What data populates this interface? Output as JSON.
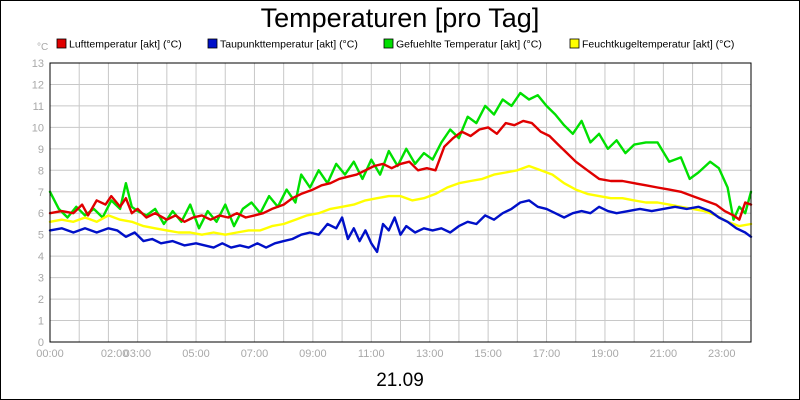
{
  "chart_data": {
    "type": "line",
    "title": "Temperaturen [pro Tag]",
    "date_label": "21.09",
    "y_unit": "°C",
    "xlabel": "",
    "ylabel": "",
    "xlim": [
      0,
      24
    ],
    "ylim": [
      0,
      13
    ],
    "y_ticks": [
      0,
      1,
      2,
      3,
      4,
      5,
      6,
      7,
      8,
      9,
      10,
      11,
      12,
      13
    ],
    "x_ticks": [
      {
        "label": "00:00",
        "x": 0
      },
      {
        "label": "02:00",
        "x": 2
      },
      {
        "label": "03:00",
        "x": 3
      },
      {
        "label": "05:00",
        "x": 5
      },
      {
        "label": "07:00",
        "x": 7
      },
      {
        "label": "09:00",
        "x": 9
      },
      {
        "label": "11:00",
        "x": 11
      },
      {
        "label": "13:00",
        "x": 13
      },
      {
        "label": "15:00",
        "x": 15
      },
      {
        "label": "17:00",
        "x": 17
      },
      {
        "label": "19:00",
        "x": 19
      },
      {
        "label": "21:00",
        "x": 21
      },
      {
        "label": "23:00",
        "x": 23
      }
    ],
    "grid": true,
    "legend_position": "top",
    "series": [
      {
        "name": "Lufttemperatur [akt] (°C)",
        "color": "#e00000",
        "points": [
          [
            0,
            6.0
          ],
          [
            0.4,
            6.1
          ],
          [
            0.8,
            6.0
          ],
          [
            1.1,
            6.4
          ],
          [
            1.3,
            5.9
          ],
          [
            1.6,
            6.6
          ],
          [
            1.9,
            6.4
          ],
          [
            2.1,
            6.8
          ],
          [
            2.4,
            6.3
          ],
          [
            2.6,
            6.7
          ],
          [
            2.8,
            6.0
          ],
          [
            3.0,
            6.2
          ],
          [
            3.3,
            5.8
          ],
          [
            3.6,
            6.0
          ],
          [
            4.0,
            5.7
          ],
          [
            4.3,
            5.9
          ],
          [
            4.6,
            5.6
          ],
          [
            4.9,
            5.8
          ],
          [
            5.2,
            5.9
          ],
          [
            5.5,
            5.7
          ],
          [
            5.8,
            5.9
          ],
          [
            6.1,
            5.8
          ],
          [
            6.4,
            6.0
          ],
          [
            6.7,
            5.8
          ],
          [
            7.0,
            5.9
          ],
          [
            7.3,
            6.0
          ],
          [
            7.6,
            6.2
          ],
          [
            8.0,
            6.4
          ],
          [
            8.3,
            6.7
          ],
          [
            8.6,
            6.9
          ],
          [
            9.0,
            7.1
          ],
          [
            9.3,
            7.3
          ],
          [
            9.6,
            7.4
          ],
          [
            9.9,
            7.6
          ],
          [
            10.2,
            7.7
          ],
          [
            10.5,
            7.8
          ],
          [
            10.8,
            8.0
          ],
          [
            11.1,
            8.2
          ],
          [
            11.4,
            8.3
          ],
          [
            11.7,
            8.1
          ],
          [
            12.0,
            8.3
          ],
          [
            12.3,
            8.4
          ],
          [
            12.6,
            8.0
          ],
          [
            12.9,
            8.1
          ],
          [
            13.2,
            8.0
          ],
          [
            13.5,
            9.1
          ],
          [
            13.8,
            9.5
          ],
          [
            14.1,
            9.8
          ],
          [
            14.4,
            9.6
          ],
          [
            14.7,
            9.9
          ],
          [
            15.0,
            10.0
          ],
          [
            15.3,
            9.7
          ],
          [
            15.6,
            10.2
          ],
          [
            15.9,
            10.1
          ],
          [
            16.2,
            10.3
          ],
          [
            16.5,
            10.2
          ],
          [
            16.8,
            9.8
          ],
          [
            17.1,
            9.6
          ],
          [
            17.4,
            9.2
          ],
          [
            17.7,
            8.8
          ],
          [
            18.0,
            8.4
          ],
          [
            18.4,
            8.0
          ],
          [
            18.8,
            7.6
          ],
          [
            19.2,
            7.5
          ],
          [
            19.6,
            7.5
          ],
          [
            20.0,
            7.4
          ],
          [
            20.4,
            7.3
          ],
          [
            20.8,
            7.2
          ],
          [
            21.2,
            7.1
          ],
          [
            21.6,
            7.0
          ],
          [
            22.0,
            6.8
          ],
          [
            22.4,
            6.6
          ],
          [
            22.8,
            6.4
          ],
          [
            23.1,
            6.1
          ],
          [
            23.4,
            5.9
          ],
          [
            23.6,
            5.7
          ],
          [
            23.8,
            6.5
          ],
          [
            24.0,
            6.4
          ]
        ]
      },
      {
        "name": "Taupunkttemperatur [akt] (°C)",
        "color": "#0010c8",
        "points": [
          [
            0,
            5.2
          ],
          [
            0.4,
            5.3
          ],
          [
            0.8,
            5.1
          ],
          [
            1.2,
            5.3
          ],
          [
            1.6,
            5.1
          ],
          [
            2.0,
            5.3
          ],
          [
            2.3,
            5.2
          ],
          [
            2.6,
            4.9
          ],
          [
            2.9,
            5.1
          ],
          [
            3.2,
            4.7
          ],
          [
            3.5,
            4.8
          ],
          [
            3.8,
            4.6
          ],
          [
            4.2,
            4.7
          ],
          [
            4.6,
            4.5
          ],
          [
            5.0,
            4.6
          ],
          [
            5.3,
            4.5
          ],
          [
            5.6,
            4.4
          ],
          [
            5.9,
            4.6
          ],
          [
            6.2,
            4.4
          ],
          [
            6.5,
            4.5
          ],
          [
            6.8,
            4.4
          ],
          [
            7.1,
            4.6
          ],
          [
            7.4,
            4.4
          ],
          [
            7.7,
            4.6
          ],
          [
            8.0,
            4.7
          ],
          [
            8.3,
            4.8
          ],
          [
            8.6,
            5.0
          ],
          [
            8.9,
            5.1
          ],
          [
            9.2,
            5.0
          ],
          [
            9.5,
            5.5
          ],
          [
            9.8,
            5.3
          ],
          [
            10.0,
            5.8
          ],
          [
            10.2,
            4.8
          ],
          [
            10.4,
            5.3
          ],
          [
            10.6,
            4.7
          ],
          [
            10.8,
            5.2
          ],
          [
            11.0,
            4.6
          ],
          [
            11.2,
            4.2
          ],
          [
            11.4,
            5.5
          ],
          [
            11.6,
            5.2
          ],
          [
            11.8,
            5.8
          ],
          [
            12.0,
            5.0
          ],
          [
            12.2,
            5.4
          ],
          [
            12.5,
            5.1
          ],
          [
            12.8,
            5.3
          ],
          [
            13.1,
            5.2
          ],
          [
            13.4,
            5.3
          ],
          [
            13.7,
            5.1
          ],
          [
            14.0,
            5.4
          ],
          [
            14.3,
            5.6
          ],
          [
            14.6,
            5.5
          ],
          [
            14.9,
            5.9
          ],
          [
            15.2,
            5.7
          ],
          [
            15.5,
            6.0
          ],
          [
            15.8,
            6.2
          ],
          [
            16.1,
            6.5
          ],
          [
            16.4,
            6.6
          ],
          [
            16.7,
            6.3
          ],
          [
            17.0,
            6.2
          ],
          [
            17.3,
            6.0
          ],
          [
            17.6,
            5.8
          ],
          [
            17.9,
            6.0
          ],
          [
            18.2,
            6.1
          ],
          [
            18.5,
            6.0
          ],
          [
            18.8,
            6.3
          ],
          [
            19.1,
            6.1
          ],
          [
            19.4,
            6.0
          ],
          [
            19.8,
            6.1
          ],
          [
            20.2,
            6.2
          ],
          [
            20.6,
            6.1
          ],
          [
            21.0,
            6.2
          ],
          [
            21.4,
            6.3
          ],
          [
            21.8,
            6.2
          ],
          [
            22.2,
            6.3
          ],
          [
            22.6,
            6.1
          ],
          [
            22.9,
            5.8
          ],
          [
            23.2,
            5.6
          ],
          [
            23.5,
            5.3
          ],
          [
            23.8,
            5.1
          ],
          [
            24.0,
            4.9
          ]
        ]
      },
      {
        "name": "Gefuehlte Temperatur [akt] (°C)",
        "color": "#00e000",
        "points": [
          [
            0,
            7.0
          ],
          [
            0.3,
            6.2
          ],
          [
            0.6,
            5.8
          ],
          [
            0.9,
            6.3
          ],
          [
            1.2,
            5.9
          ],
          [
            1.5,
            6.2
          ],
          [
            1.8,
            5.8
          ],
          [
            2.1,
            6.6
          ],
          [
            2.4,
            6.2
          ],
          [
            2.6,
            7.4
          ],
          [
            2.8,
            6.3
          ],
          [
            3.0,
            6.1
          ],
          [
            3.3,
            5.9
          ],
          [
            3.6,
            6.2
          ],
          [
            3.9,
            5.5
          ],
          [
            4.2,
            6.1
          ],
          [
            4.5,
            5.6
          ],
          [
            4.8,
            6.4
          ],
          [
            5.1,
            5.3
          ],
          [
            5.4,
            6.1
          ],
          [
            5.7,
            5.6
          ],
          [
            6.0,
            6.4
          ],
          [
            6.3,
            5.4
          ],
          [
            6.6,
            6.2
          ],
          [
            6.9,
            6.5
          ],
          [
            7.2,
            6.0
          ],
          [
            7.5,
            6.8
          ],
          [
            7.8,
            6.3
          ],
          [
            8.1,
            7.1
          ],
          [
            8.4,
            6.5
          ],
          [
            8.6,
            7.8
          ],
          [
            8.9,
            7.2
          ],
          [
            9.2,
            8.0
          ],
          [
            9.5,
            7.4
          ],
          [
            9.8,
            8.3
          ],
          [
            10.1,
            7.8
          ],
          [
            10.4,
            8.4
          ],
          [
            10.7,
            7.6
          ],
          [
            11.0,
            8.5
          ],
          [
            11.3,
            7.8
          ],
          [
            11.6,
            8.9
          ],
          [
            11.9,
            8.2
          ],
          [
            12.2,
            9.0
          ],
          [
            12.5,
            8.3
          ],
          [
            12.8,
            8.8
          ],
          [
            13.1,
            8.5
          ],
          [
            13.4,
            9.3
          ],
          [
            13.7,
            9.9
          ],
          [
            14.0,
            9.5
          ],
          [
            14.3,
            10.5
          ],
          [
            14.6,
            10.2
          ],
          [
            14.9,
            11.0
          ],
          [
            15.2,
            10.6
          ],
          [
            15.5,
            11.3
          ],
          [
            15.8,
            11.0
          ],
          [
            16.1,
            11.6
          ],
          [
            16.4,
            11.3
          ],
          [
            16.7,
            11.5
          ],
          [
            17.0,
            11.0
          ],
          [
            17.3,
            10.6
          ],
          [
            17.6,
            10.1
          ],
          [
            17.9,
            9.7
          ],
          [
            18.2,
            10.3
          ],
          [
            18.5,
            9.3
          ],
          [
            18.8,
            9.7
          ],
          [
            19.1,
            9.0
          ],
          [
            19.4,
            9.4
          ],
          [
            19.7,
            8.8
          ],
          [
            20.0,
            9.2
          ],
          [
            20.4,
            9.3
          ],
          [
            20.8,
            9.3
          ],
          [
            21.2,
            8.4
          ],
          [
            21.6,
            8.6
          ],
          [
            21.9,
            7.6
          ],
          [
            22.2,
            7.9
          ],
          [
            22.6,
            8.4
          ],
          [
            22.9,
            8.1
          ],
          [
            23.2,
            7.2
          ],
          [
            23.4,
            5.7
          ],
          [
            23.6,
            6.3
          ],
          [
            23.8,
            6.0
          ],
          [
            24.0,
            7.0
          ]
        ]
      },
      {
        "name": "Feuchtkugeltemperatur [akt] (°C)",
        "color": "#ffff00",
        "points": [
          [
            0,
            5.6
          ],
          [
            0.4,
            5.7
          ],
          [
            0.8,
            5.6
          ],
          [
            1.2,
            5.8
          ],
          [
            1.6,
            5.6
          ],
          [
            2.0,
            5.9
          ],
          [
            2.4,
            5.7
          ],
          [
            2.8,
            5.6
          ],
          [
            3.2,
            5.4
          ],
          [
            3.6,
            5.3
          ],
          [
            4.0,
            5.2
          ],
          [
            4.4,
            5.1
          ],
          [
            4.8,
            5.1
          ],
          [
            5.2,
            5.0
          ],
          [
            5.6,
            5.1
          ],
          [
            6.0,
            5.0
          ],
          [
            6.4,
            5.1
          ],
          [
            6.8,
            5.2
          ],
          [
            7.2,
            5.2
          ],
          [
            7.6,
            5.4
          ],
          [
            8.0,
            5.5
          ],
          [
            8.4,
            5.7
          ],
          [
            8.8,
            5.9
          ],
          [
            9.2,
            6.0
          ],
          [
            9.6,
            6.2
          ],
          [
            10.0,
            6.3
          ],
          [
            10.4,
            6.4
          ],
          [
            10.8,
            6.6
          ],
          [
            11.2,
            6.7
          ],
          [
            11.6,
            6.8
          ],
          [
            12.0,
            6.8
          ],
          [
            12.4,
            6.6
          ],
          [
            12.8,
            6.7
          ],
          [
            13.2,
            6.9
          ],
          [
            13.6,
            7.2
          ],
          [
            14.0,
            7.4
          ],
          [
            14.4,
            7.5
          ],
          [
            14.8,
            7.6
          ],
          [
            15.2,
            7.8
          ],
          [
            15.6,
            7.9
          ],
          [
            16.0,
            8.0
          ],
          [
            16.4,
            8.2
          ],
          [
            16.8,
            8.0
          ],
          [
            17.2,
            7.8
          ],
          [
            17.6,
            7.4
          ],
          [
            18.0,
            7.1
          ],
          [
            18.4,
            6.9
          ],
          [
            18.8,
            6.8
          ],
          [
            19.2,
            6.7
          ],
          [
            19.6,
            6.7
          ],
          [
            20.0,
            6.6
          ],
          [
            20.4,
            6.5
          ],
          [
            20.8,
            6.5
          ],
          [
            21.2,
            6.4
          ],
          [
            21.6,
            6.3
          ],
          [
            22.0,
            6.2
          ],
          [
            22.4,
            6.1
          ],
          [
            22.8,
            5.9
          ],
          [
            23.2,
            5.6
          ],
          [
            23.6,
            5.4
          ],
          [
            24.0,
            5.5
          ]
        ]
      }
    ]
  }
}
